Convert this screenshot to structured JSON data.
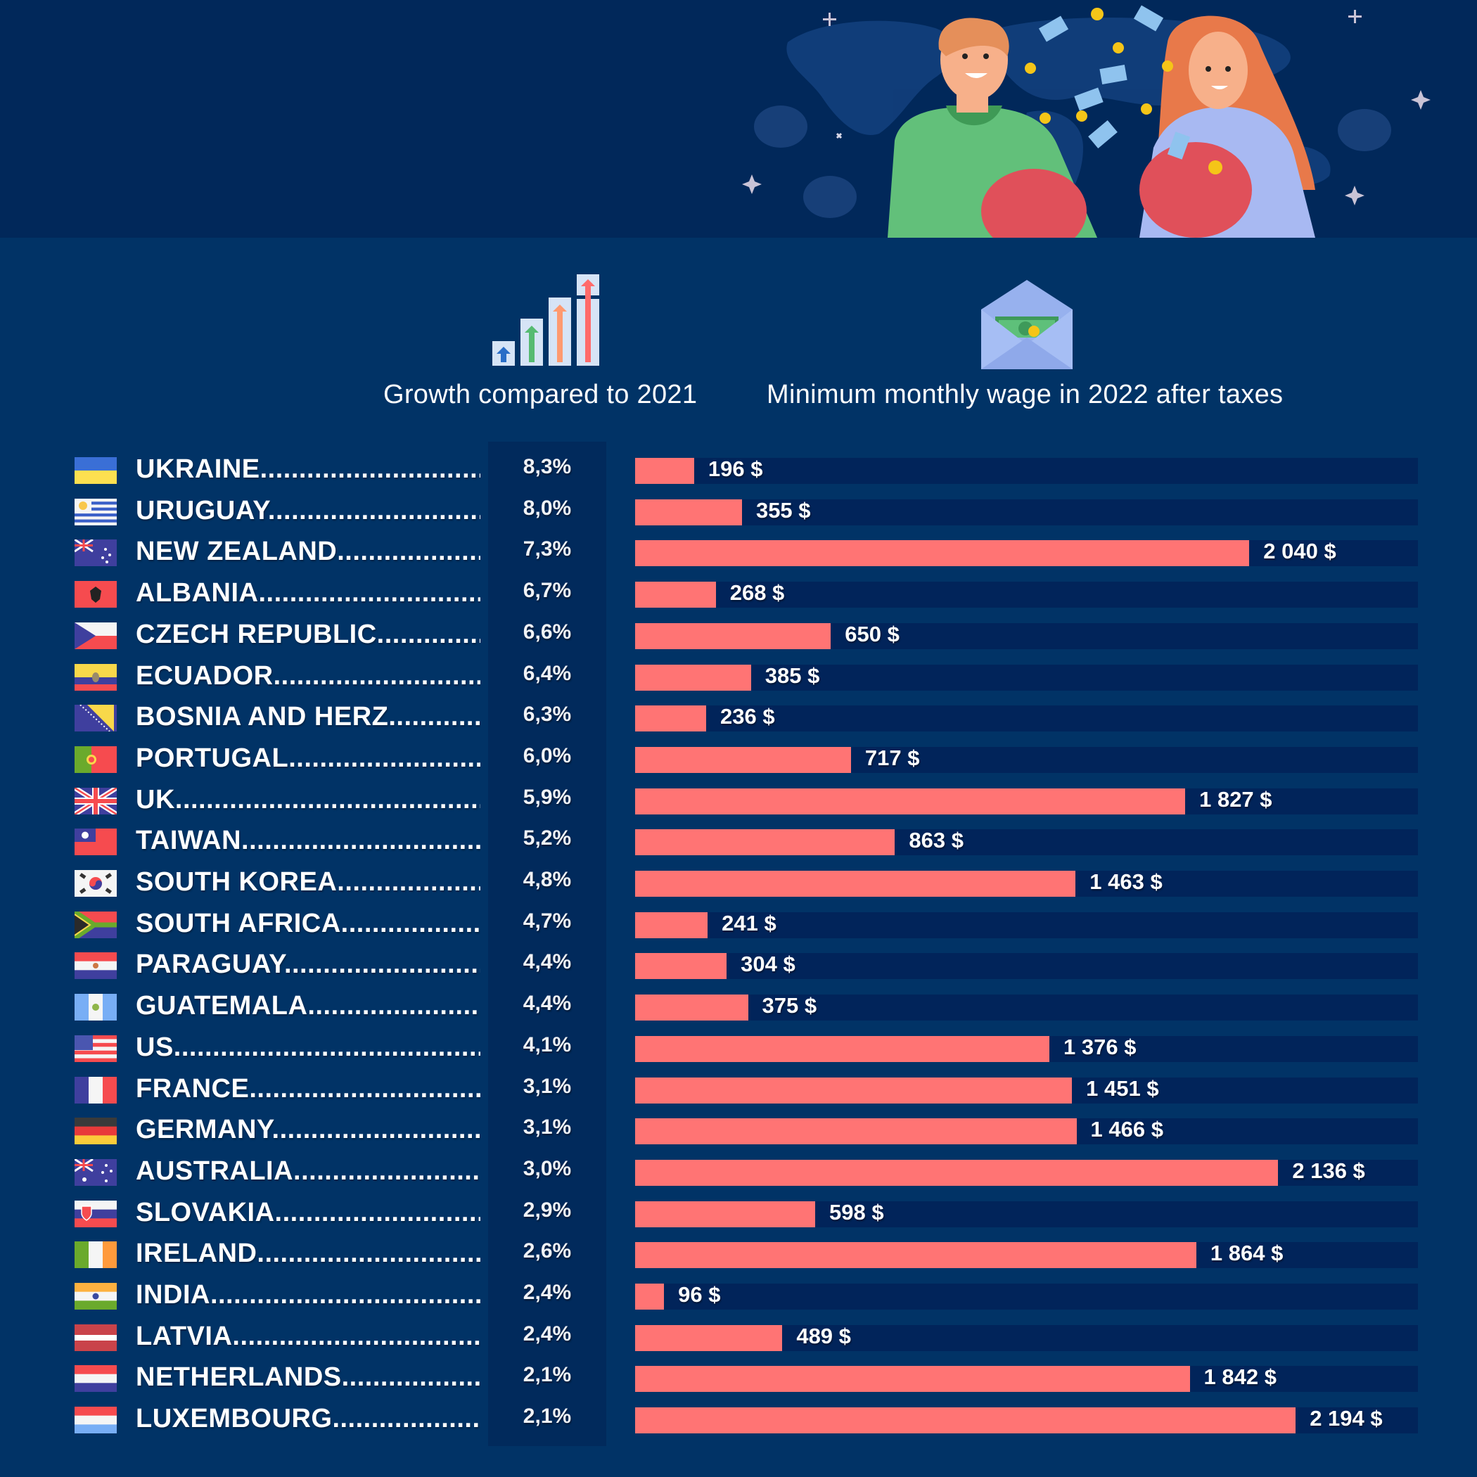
{
  "header": {
    "growth_title": "Growth compared to 2021",
    "wage_title": "Minimum monthly wage in 2022 after taxes"
  },
  "colors": {
    "background": "#013366",
    "banner": "#01285a",
    "bar": "#ff7474",
    "track": "#01245a",
    "text": "#ffffff"
  },
  "icons": {
    "growth": "bar-chart-arrows-icon",
    "wage": "envelope-money-icon"
  },
  "banner": {
    "illustration": "man-and-woman-with-piggy-banks-illustration"
  },
  "chart_data": {
    "type": "bar",
    "orientation": "horizontal",
    "title": "Minimum monthly wage in 2022 after taxes",
    "secondary_column_title": "Growth compared to 2021",
    "unit": "$",
    "xlim": [
      0,
      2600
    ],
    "grid": false,
    "legend": "none",
    "categories": [
      "UKRAINE",
      "URUGUAY",
      "NEW ZEALAND",
      "ALBANIA",
      "CZECH REPUBLIC",
      "ECUADOR",
      "BOSNIA AND HERZ",
      "PORTUGAL",
      "UK",
      "TAIWAN",
      "SOUTH KOREA",
      "SOUTH AFRICA",
      "PARAGUAY",
      "GUATEMALA",
      "US",
      "FRANCE",
      "GERMANY",
      "AUSTRALIA",
      "SLOVAKIA",
      "IRELAND",
      "INDIA",
      "LATVIA",
      "NETHERLANDS",
      "LUXEMBOURG"
    ],
    "series": [
      {
        "name": "Minimum monthly wage 2022 (USD)",
        "values": [
          196,
          355,
          2040,
          268,
          650,
          385,
          236,
          717,
          1827,
          863,
          1463,
          241,
          304,
          375,
          1376,
          1451,
          1466,
          2136,
          598,
          1864,
          96,
          489,
          1842,
          2194
        ]
      },
      {
        "name": "Growth compared to 2021 (%)",
        "values": [
          8.3,
          8.0,
          7.3,
          6.7,
          6.6,
          6.4,
          6.3,
          6.0,
          5.9,
          5.2,
          4.8,
          4.7,
          4.4,
          4.4,
          4.1,
          3.1,
          3.1,
          3.0,
          2.9,
          2.6,
          2.4,
          2.4,
          2.1,
          2.1
        ]
      }
    ],
    "rows": [
      {
        "country": "UKRAINE",
        "flag": "ukraine-flag-icon",
        "growth": "8,3%",
        "wage": 196,
        "wage_label": "196 $"
      },
      {
        "country": "URUGUAY",
        "flag": "uruguay-flag-icon",
        "growth": "8,0%",
        "wage": 355,
        "wage_label": "355 $"
      },
      {
        "country": "NEW ZEALAND",
        "flag": "new-zealand-flag-icon",
        "growth": "7,3%",
        "wage": 2040,
        "wage_label": "2 040 $"
      },
      {
        "country": "ALBANIA",
        "flag": "albania-flag-icon",
        "growth": "6,7%",
        "wage": 268,
        "wage_label": "268 $"
      },
      {
        "country": "CZECH REPUBLIC",
        "flag": "czech-flag-icon",
        "growth": "6,6%",
        "wage": 650,
        "wage_label": "650 $"
      },
      {
        "country": "ECUADOR",
        "flag": "ecuador-flag-icon",
        "growth": "6,4%",
        "wage": 385,
        "wage_label": "385 $"
      },
      {
        "country": "BOSNIA AND HERZ",
        "flag": "bosnia-flag-icon",
        "growth": "6,3%",
        "wage": 236,
        "wage_label": "236 $"
      },
      {
        "country": "PORTUGAL",
        "flag": "portugal-flag-icon",
        "growth": "6,0%",
        "wage": 717,
        "wage_label": "717 $"
      },
      {
        "country": "UK",
        "flag": "uk-flag-icon",
        "growth": "5,9%",
        "wage": 1827,
        "wage_label": "1 827 $"
      },
      {
        "country": "TAIWAN",
        "flag": "taiwan-flag-icon",
        "growth": "5,2%",
        "wage": 863,
        "wage_label": "863 $"
      },
      {
        "country": "SOUTH KOREA",
        "flag": "south-korea-flag-icon",
        "growth": "4,8%",
        "wage": 1463,
        "wage_label": "1 463 $"
      },
      {
        "country": "SOUTH AFRICA",
        "flag": "south-africa-flag-icon",
        "growth": "4,7%",
        "wage": 241,
        "wage_label": "241 $"
      },
      {
        "country": "PARAGUAY",
        "flag": "paraguay-flag-icon",
        "growth": "4,4%",
        "wage": 304,
        "wage_label": "304 $"
      },
      {
        "country": "GUATEMALA",
        "flag": "guatemala-flag-icon",
        "growth": "4,4%",
        "wage": 375,
        "wage_label": "375 $"
      },
      {
        "country": "US",
        "flag": "us-flag-icon",
        "growth": "4,1%",
        "wage": 1376,
        "wage_label": "1 376 $"
      },
      {
        "country": "FRANCE",
        "flag": "france-flag-icon",
        "growth": "3,1%",
        "wage": 1451,
        "wage_label": "1 451 $"
      },
      {
        "country": "GERMANY",
        "flag": "germany-flag-icon",
        "growth": "3,1%",
        "wage": 1466,
        "wage_label": "1 466 $"
      },
      {
        "country": "AUSTRALIA",
        "flag": "australia-flag-icon",
        "growth": "3,0%",
        "wage": 2136,
        "wage_label": "2 136 $"
      },
      {
        "country": "SLOVAKIA",
        "flag": "slovakia-flag-icon",
        "growth": "2,9%",
        "wage": 598,
        "wage_label": "598 $"
      },
      {
        "country": "IRELAND",
        "flag": "ireland-flag-icon",
        "growth": "2,6%",
        "wage": 1864,
        "wage_label": "1 864 $"
      },
      {
        "country": "INDIA",
        "flag": "india-flag-icon",
        "growth": "2,4%",
        "wage": 96,
        "wage_label": "96 $"
      },
      {
        "country": "LATVIA",
        "flag": "latvia-flag-icon",
        "growth": "2,4%",
        "wage": 489,
        "wage_label": "489 $"
      },
      {
        "country": "NETHERLANDS",
        "flag": "netherlands-flag-icon",
        "growth": "2,1%",
        "wage": 1842,
        "wage_label": "1 842 $"
      },
      {
        "country": "LUXEMBOURG",
        "flag": "luxembourg-flag-icon",
        "growth": "2,1%",
        "wage": 2194,
        "wage_label": "2 194 $"
      }
    ]
  }
}
